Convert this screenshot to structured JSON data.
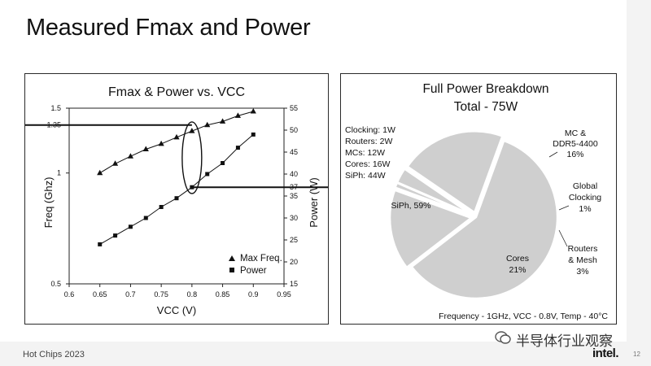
{
  "slide": {
    "title": "Measured Fmax and Power",
    "footer": "Hot Chips 2023",
    "page_number": "12",
    "logo_text": "intel.",
    "watermark_text": "半导体行业观察"
  },
  "chart_data": [
    {
      "type": "scatter",
      "title": "Fmax & Power vs. VCC",
      "xlabel": "VCC (V)",
      "ylabel": "Freq (Ghz)",
      "y2label": "Power (W)",
      "xlim": [
        0.6,
        0.95
      ],
      "ylim": [
        0.5,
        1.5
      ],
      "y2lim": [
        15,
        55
      ],
      "log_y": true,
      "x_ticks": [
        "0.6",
        "0.65",
        "0.7",
        "0.75",
        "0.8",
        "0.85",
        "0.9",
        "0.95"
      ],
      "y_ticks": [
        {
          "value": 0.5,
          "label": "0.5"
        },
        {
          "value": 1,
          "label": "1"
        },
        {
          "value": 1.35,
          "label": "1.35"
        },
        {
          "value": 1.5,
          "label": "1.5"
        }
      ],
      "y2_ticks": [
        "15",
        "20",
        "25",
        "30",
        "35",
        "37",
        "40",
        "45",
        "50",
        "55"
      ],
      "series": [
        {
          "name": "Max Freq.",
          "marker": "triangle",
          "axis": "left",
          "x": [
            0.65,
            0.675,
            0.7,
            0.725,
            0.75,
            0.775,
            0.8,
            0.825,
            0.85,
            0.875,
            0.9
          ],
          "y": [
            1.0,
            1.06,
            1.11,
            1.16,
            1.2,
            1.25,
            1.3,
            1.35,
            1.38,
            1.43,
            1.47
          ]
        },
        {
          "name": "Power",
          "marker": "square",
          "axis": "right",
          "x": [
            0.65,
            0.675,
            0.7,
            0.725,
            0.75,
            0.775,
            0.8,
            0.825,
            0.85,
            0.875,
            0.9
          ],
          "y": [
            24,
            26,
            28,
            30,
            32.5,
            34.5,
            37,
            40,
            42.5,
            46,
            49
          ]
        }
      ],
      "annotations": [
        {
          "type": "hline",
          "axis": "left",
          "value": 1.35,
          "from_x": 0.6,
          "to_x": 0.8
        },
        {
          "type": "hline",
          "axis": "right",
          "value": 37,
          "from_x": 0.8,
          "to_x": 0.95
        },
        {
          "type": "ellipse",
          "x": 0.8
        }
      ],
      "legend": {
        "placement": "bottom-right",
        "entries": [
          "Max Freq.",
          "Power"
        ]
      }
    },
    {
      "type": "pie",
      "title": "Full Power Breakdown",
      "subtitle": "Total - 75W",
      "slices": [
        {
          "label": "SiPh",
          "value": 59,
          "text": "SiPh, 59%",
          "color": "#cfcfcf"
        },
        {
          "label": "MC & DDR5-4400",
          "value": 16,
          "text": "16%",
          "color": "#cfcfcf"
        },
        {
          "label": "Global Clocking",
          "value": 1,
          "text": "1%",
          "color": "#cfcfcf"
        },
        {
          "label": "Routers & Mesh",
          "value": 3,
          "text": "3%",
          "color": "#cfcfcf"
        },
        {
          "label": "Cores",
          "value": 21,
          "text": "21%",
          "color": "#cfcfcf"
        }
      ],
      "legend_box": [
        "Clocking: 1W",
        "Routers: 2W",
        "MCs: 12W",
        "Cores: 16W",
        "SiPh: 44W"
      ],
      "callouts": [
        {
          "lines": [
            "MC &",
            "DDR5-4400",
            "16%"
          ]
        },
        {
          "lines": [
            "Global",
            "Clocking",
            "1%"
          ]
        },
        {
          "lines": [
            "Routers",
            "& Mesh",
            "3%"
          ]
        }
      ],
      "inner_labels": [
        {
          "lines": [
            "SiPh, 59%"
          ]
        },
        {
          "lines": [
            "Cores",
            "21%"
          ]
        }
      ],
      "footnote": "Frequency - 1GHz, VCC - 0.8V, Temp - 40°C"
    }
  ]
}
